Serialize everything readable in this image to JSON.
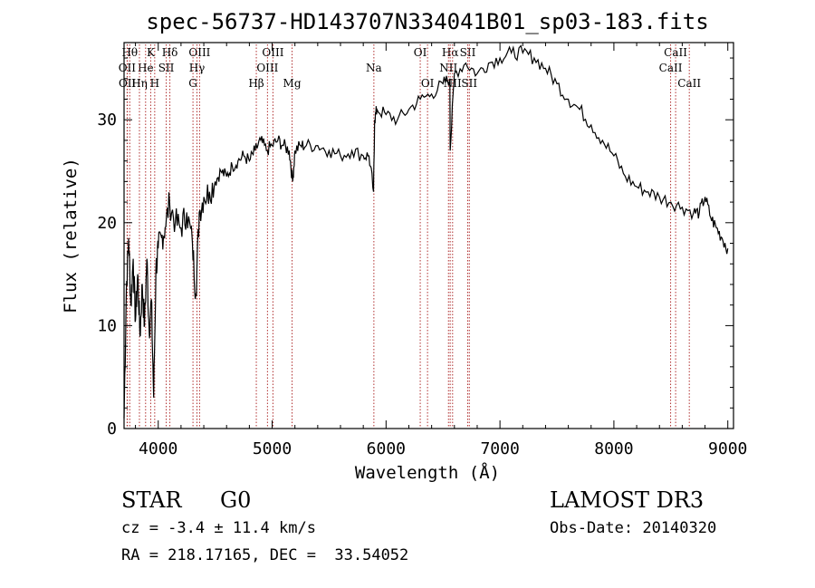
{
  "chart_data": {
    "type": "line",
    "title": "spec-56737-HD143707N334041B01_sp03-183.fits",
    "xlabel": "Wavelength (Å)",
    "ylabel": "Flux (relative)",
    "xlim": [
      3700,
      9050
    ],
    "ylim": [
      0,
      37.5
    ],
    "xticks": [
      4000,
      5000,
      6000,
      7000,
      8000,
      9000
    ],
    "yticks": [
      0,
      10,
      20,
      30
    ],
    "grid": false,
    "line_color": "#000000",
    "marker_color": "#b03030",
    "series": [
      {
        "x": [
          3700,
          3720,
          3740,
          3760,
          3780,
          3800,
          3820,
          3840,
          3860,
          3880,
          3900,
          3920,
          3940,
          3960,
          3980,
          4000,
          4030,
          4060,
          4100,
          4150,
          4200,
          4250,
          4300,
          4330,
          4360,
          4400,
          4450,
          4500,
          4550,
          4600,
          4650,
          4700,
          4750,
          4800,
          4850,
          4900,
          4950,
          5000,
          5050,
          5100,
          5150,
          5180,
          5200,
          5250,
          5300,
          5400,
          5500,
          5600,
          5700,
          5800,
          5850,
          5890,
          5900,
          5920,
          6000,
          6100,
          6200,
          6300,
          6400,
          6500,
          6560,
          6563,
          6600,
          6700,
          6800,
          6900,
          7000,
          7100,
          7200,
          7300,
          7400,
          7500,
          7600,
          7700,
          7800,
          7900,
          8000,
          8100,
          8200,
          8300,
          8400,
          8500,
          8600,
          8700,
          8750,
          8800,
          8850,
          8900,
          8950,
          9000
        ],
        "values": [
          1.0,
          13.5,
          18.5,
          12.0,
          16.5,
          10.5,
          15.0,
          9.0,
          14.0,
          10.0,
          16.5,
          9.5,
          12.5,
          3.0,
          15.5,
          17.5,
          18.5,
          19.5,
          22.0,
          20.0,
          19.5,
          21.0,
          18.0,
          13.0,
          21.0,
          22.5,
          23.0,
          24.0,
          25.0,
          24.5,
          25.5,
          26.0,
          26.5,
          26.0,
          27.0,
          28.0,
          27.0,
          27.5,
          28.0,
          27.5,
          27.0,
          24.0,
          27.0,
          27.5,
          27.5,
          27.5,
          27.0,
          26.5,
          27.0,
          26.5,
          26.5,
          23.0,
          30.0,
          31.0,
          30.5,
          30.0,
          31.0,
          32.0,
          32.5,
          33.5,
          34.0,
          27.0,
          34.5,
          35.5,
          34.5,
          35.5,
          36.0,
          36.5,
          36.5,
          36.0,
          35.0,
          33.5,
          32.0,
          31.0,
          29.5,
          28.0,
          26.5,
          24.5,
          23.5,
          23.0,
          22.5,
          22.0,
          21.5,
          21.0,
          21.0,
          22.5,
          20.5,
          19.5,
          18.5,
          17.5
        ]
      }
    ],
    "lines": [
      {
        "label": "Hθ",
        "x": 3750,
        "row": 0
      },
      {
        "label": "OII",
        "x": 3727,
        "row": 1
      },
      {
        "label": "OII",
        "x": 3729,
        "row": 2
      },
      {
        "label": "He",
        "x": 3889,
        "row": 1
      },
      {
        "label": "Hη",
        "x": 3835,
        "row": 2
      },
      {
        "label": "K",
        "x": 3934,
        "row": 0
      },
      {
        "label": "H",
        "x": 3969,
        "row": 2
      },
      {
        "label": "SII",
        "x": 4070,
        "row": 1
      },
      {
        "label": "Hδ",
        "x": 4102,
        "row": 0
      },
      {
        "label": "OIII",
        "x": 4363,
        "row": 0
      },
      {
        "label": "Hγ",
        "x": 4340,
        "row": 1
      },
      {
        "label": "G",
        "x": 4305,
        "row": 2
      },
      {
        "label": "Hβ",
        "x": 4861,
        "row": 2
      },
      {
        "label": "OIII",
        "x": 5007,
        "row": 0
      },
      {
        "label": "OIII",
        "x": 4959,
        "row": 1
      },
      {
        "label": "Mg",
        "x": 5175,
        "row": 2
      },
      {
        "label": "Na",
        "x": 5893,
        "row": 1
      },
      {
        "label": "OI",
        "x": 6300,
        "row": 0
      },
      {
        "label": "OI",
        "x": 6364,
        "row": 2
      },
      {
        "label": "Hα",
        "x": 6563,
        "row": 0
      },
      {
        "label": "NII",
        "x": 6548,
        "row": 1
      },
      {
        "label": "NII",
        "x": 6584,
        "row": 2
      },
      {
        "label": "SII",
        "x": 6717,
        "row": 0
      },
      {
        "label": "SII",
        "x": 6731,
        "row": 2
      },
      {
        "label": "CaII",
        "x": 8542,
        "row": 0
      },
      {
        "label": "CaII",
        "x": 8498,
        "row": 1
      },
      {
        "label": "CaII",
        "x": 8662,
        "row": 2
      }
    ]
  },
  "info": {
    "object_class": "STAR",
    "subclass": "G0",
    "survey": "LAMOST DR3",
    "velocity": "cz = -3.4 ± 11.4 km/s",
    "obs_date": "Obs-Date: 20140320",
    "coords": "RA = 218.17165, DEC =  33.54052"
  }
}
